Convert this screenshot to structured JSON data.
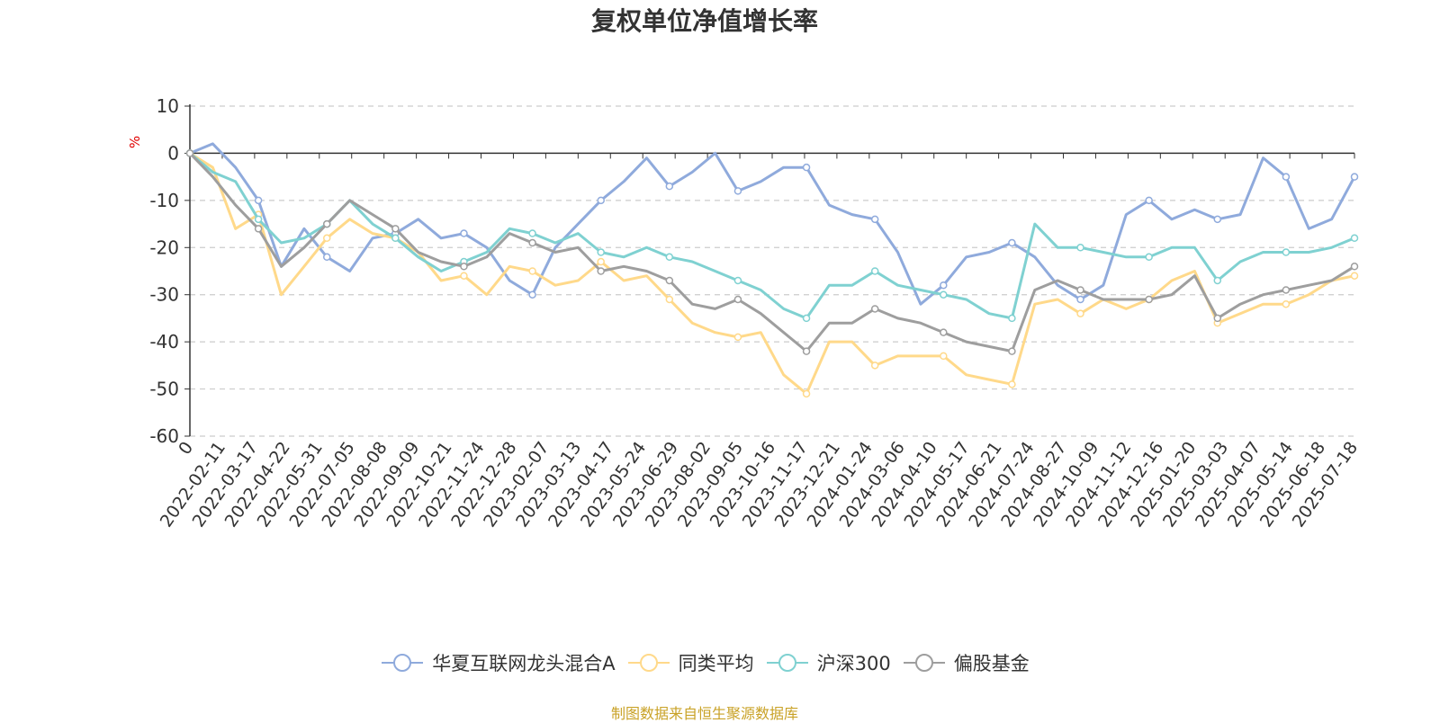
{
  "chart_data": {
    "type": "line",
    "title": "复权单位净值增长率",
    "ylabel": "%",
    "ylim": [
      -60,
      10
    ],
    "yticks": [
      10,
      0,
      -10,
      -20,
      -30,
      -40,
      -50,
      -60
    ],
    "grid": true,
    "legend_position": "bottom",
    "x_tick_labels": [
      "0",
      "2022-02-11",
      "2022-03-17",
      "2022-04-22",
      "2022-05-31",
      "2022-07-05",
      "2022-08-08",
      "2022-09-09",
      "2022-10-21",
      "2022-11-24",
      "2022-12-28",
      "2023-02-07",
      "2023-03-13",
      "2023-04-17",
      "2023-05-24",
      "2023-06-29",
      "2023-08-02",
      "2023-09-05",
      "2023-10-16",
      "2023-11-17",
      "2023-12-21",
      "2024-01-24",
      "2024-03-06",
      "2024-04-10",
      "2024-05-17",
      "2024-06-21",
      "2024-07-24",
      "2024-08-27",
      "2024-10-09",
      "2024-11-12",
      "2024-12-16",
      "2025-01-20",
      "2025-03-03",
      "2025-04-07",
      "2025-05-14",
      "2025-06-18",
      "2025-07-18"
    ],
    "series": [
      {
        "name": "华夏互联网龙头混合A",
        "color": "#8faadc",
        "values": [
          0,
          2,
          -3,
          -10,
          -24,
          -16,
          -22,
          -25,
          -18,
          -17,
          -14,
          -18,
          -17,
          -20,
          -27,
          -30,
          -20,
          -15,
          -10,
          -6,
          -1,
          -7,
          -4,
          0,
          -8,
          -6,
          -3,
          -3,
          -11,
          -13,
          -14,
          -21,
          -32,
          -28,
          -22,
          -21,
          -19,
          -22,
          -28,
          -31,
          -28,
          -13,
          -10,
          -14,
          -12,
          -14,
          -13,
          -1,
          -5,
          -16,
          -14,
          -5
        ]
      },
      {
        "name": "同类平均",
        "color": "#ffd98a",
        "values": [
          0,
          -3,
          -16,
          -13,
          -30,
          -24,
          -18,
          -14,
          -17,
          -18,
          -21,
          -27,
          -26,
          -30,
          -24,
          -25,
          -28,
          -27,
          -23,
          -27,
          -26,
          -31,
          -36,
          -38,
          -39,
          -38,
          -47,
          -51,
          -40,
          -40,
          -45,
          -43,
          -43,
          -43,
          -47,
          -48,
          -49,
          -32,
          -31,
          -34,
          -31,
          -33,
          -31,
          -27,
          -25,
          -36,
          -34,
          -32,
          -32,
          -30,
          -27,
          -26
        ]
      },
      {
        "name": "沪深300",
        "color": "#7fd1d1",
        "values": [
          0,
          -4,
          -6,
          -14,
          -19,
          -18,
          -15,
          -10,
          -15,
          -18,
          -22,
          -25,
          -23,
          -21,
          -16,
          -17,
          -19,
          -17,
          -21,
          -22,
          -20,
          -22,
          -23,
          -25,
          -27,
          -29,
          -33,
          -35,
          -28,
          -28,
          -25,
          -28,
          -29,
          -30,
          -31,
          -34,
          -35,
          -15,
          -20,
          -20,
          -21,
          -22,
          -22,
          -20,
          -20,
          -27,
          -23,
          -21,
          -21,
          -21,
          -20,
          -18
        ]
      },
      {
        "name": "偏股基金",
        "color": "#9e9e9e",
        "values": [
          0,
          -5,
          -11,
          -16,
          -24,
          -20,
          -15,
          -10,
          -13,
          -16,
          -21,
          -23,
          -24,
          -22,
          -17,
          -19,
          -21,
          -20,
          -25,
          -24,
          -25,
          -27,
          -32,
          -33,
          -31,
          -34,
          -38,
          -42,
          -36,
          -36,
          -33,
          -35,
          -36,
          -38,
          -40,
          -41,
          -42,
          -29,
          -27,
          -29,
          -31,
          -31,
          -31,
          -30,
          -26,
          -35,
          -32,
          -30,
          -29,
          -28,
          -27,
          -24
        ]
      }
    ]
  },
  "source_text": "制图数据来自恒生聚源数据库"
}
